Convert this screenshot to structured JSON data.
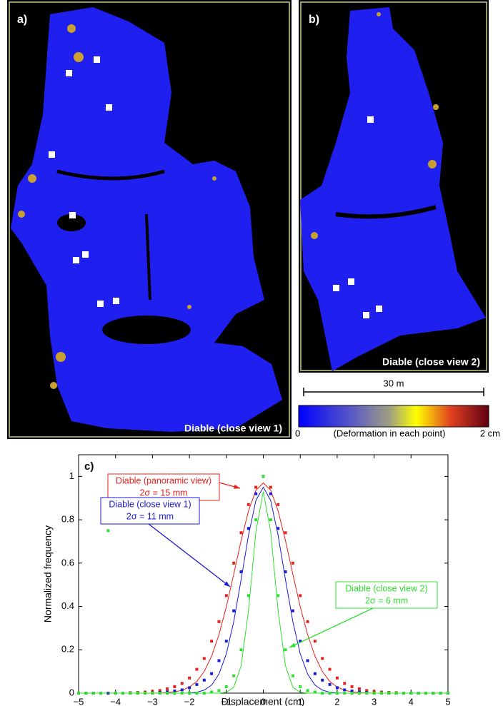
{
  "panels": [
    {
      "label": "a)",
      "caption": "Diable (close view 1)"
    },
    {
      "label": "b)",
      "caption": "Diable (close view 2)"
    }
  ],
  "scale_bar": "30 m",
  "colorbar": {
    "min_label": "0",
    "title": "(Deformation in each point)",
    "max_label": "2 cm"
  },
  "chart_data": {
    "type": "scatter",
    "panel": "c)",
    "xlabel": "Displacement (cm)",
    "ylabel": "Normalized frequency",
    "xlim": [
      -5,
      5
    ],
    "ylim": [
      0,
      1.1
    ],
    "xticks": [
      {
        "value": -5,
        "label": "−5"
      },
      {
        "value": -4,
        "label": "−4"
      },
      {
        "value": -3,
        "label": "−3"
      },
      {
        "value": -2,
        "label": "−2"
      },
      {
        "value": -1,
        "label": "−1"
      },
      0,
      1,
      2,
      3,
      4,
      5
    ],
    "yticks": [
      0,
      0.2,
      0.4,
      0.6,
      0.8,
      1
    ],
    "grid": false,
    "x": [
      -5,
      -4.8,
      -4.6,
      -4.4,
      -4.2,
      -4,
      -3.8,
      -3.6,
      -3.4,
      -3.2,
      -3,
      -2.8,
      -2.6,
      -2.4,
      -2.2,
      -2,
      -1.8,
      -1.6,
      -1.4,
      -1.2,
      -1,
      -0.8,
      -0.6,
      -0.4,
      -0.2,
      0,
      0.2,
      0.4,
      0.6,
      0.8,
      1,
      1.2,
      1.4,
      1.6,
      1.8,
      2,
      2.2,
      2.4,
      2.6,
      2.8,
      3,
      3.2,
      3.4,
      3.6,
      3.8,
      4,
      4.2,
      4.4,
      4.6,
      4.8,
      5
    ],
    "series": [
      {
        "name": "Diable (panoramic view)",
        "note": "2σ = 15 mm",
        "color": "#e8201c",
        "values": [
          0,
          0,
          0,
          0,
          0,
          0,
          0,
          0.002,
          0.003,
          0.005,
          0.008,
          0.012,
          0.02,
          0.03,
          0.045,
          0.07,
          0.11,
          0.16,
          0.24,
          0.33,
          0.45,
          0.6,
          0.74,
          0.87,
          0.95,
          1,
          0.95,
          0.87,
          0.74,
          0.6,
          0.45,
          0.33,
          0.24,
          0.16,
          0.11,
          0.07,
          0.045,
          0.03,
          0.02,
          0.012,
          0.008,
          0.005,
          0.003,
          0.002,
          0,
          0,
          0,
          0,
          0,
          0,
          0
        ],
        "fit": [
          0,
          0,
          0,
          0,
          0,
          0,
          0,
          0,
          0,
          0,
          0,
          0.001,
          0.002,
          0.006,
          0.013,
          0.028,
          0.054,
          0.1,
          0.17,
          0.27,
          0.399,
          0.549,
          0.704,
          0.841,
          0.936,
          0.97,
          0.936,
          0.841,
          0.704,
          0.549,
          0.399,
          0.27,
          0.17,
          0.1,
          0.054,
          0.028,
          0.013,
          0.006,
          0.002,
          0.001,
          0,
          0,
          0,
          0,
          0,
          0,
          0,
          0,
          0,
          0,
          0
        ]
      },
      {
        "name": "Diable (close view 1)",
        "note": "2σ = 11 mm",
        "color": "#1a1ad8",
        "values": [
          0,
          0,
          0,
          0,
          0,
          0,
          0,
          0,
          0,
          0,
          0,
          0.003,
          0.006,
          0.01,
          0.015,
          0.025,
          0.04,
          0.06,
          0.09,
          0.15,
          0.24,
          0.38,
          0.56,
          0.76,
          0.92,
          1,
          0.92,
          0.76,
          0.56,
          0.38,
          0.24,
          0.15,
          0.09,
          0.06,
          0.04,
          0.025,
          0.015,
          0.01,
          0.006,
          0.003,
          0,
          0,
          0,
          0,
          0,
          0,
          0,
          0,
          0,
          0,
          0
        ],
        "fit": [
          0,
          0,
          0,
          0,
          0,
          0,
          0,
          0,
          0,
          0,
          0,
          0,
          0,
          0,
          0,
          0.001,
          0.004,
          0.014,
          0.037,
          0.088,
          0.182,
          0.33,
          0.524,
          0.729,
          0.889,
          0.95,
          0.889,
          0.729,
          0.524,
          0.33,
          0.182,
          0.088,
          0.037,
          0.014,
          0.004,
          0.001,
          0,
          0,
          0,
          0,
          0,
          0,
          0,
          0,
          0,
          0,
          0,
          0,
          0,
          0,
          0
        ]
      },
      {
        "name": "Diable (close view 2)",
        "note": "2σ = 6 mm",
        "color": "#2ee02e",
        "values": [
          0,
          0,
          0,
          0,
          0.75,
          0,
          0,
          0,
          0,
          0,
          0,
          0,
          0,
          0,
          0,
          0,
          0,
          0,
          0.005,
          0.012,
          0.03,
          0.08,
          0.2,
          0.45,
          0.8,
          1,
          0.8,
          0.45,
          0.2,
          0.08,
          0.03,
          0.012,
          0.005,
          0,
          0,
          0,
          0,
          0,
          0,
          0,
          0,
          0,
          0,
          0,
          0,
          0,
          0,
          0,
          0,
          0,
          0
        ],
        "fit": [
          0,
          0,
          0,
          0,
          0,
          0,
          0,
          0,
          0,
          0,
          0,
          0,
          0,
          0,
          0,
          0,
          0,
          0,
          0,
          0,
          0.004,
          0.027,
          0.126,
          0.382,
          0.745,
          0.93,
          0.745,
          0.382,
          0.126,
          0.027,
          0.004,
          0,
          0,
          0,
          0,
          0,
          0,
          0,
          0,
          0,
          0,
          0,
          0,
          0,
          0,
          0,
          0,
          0,
          0,
          0,
          0
        ]
      }
    ]
  }
}
